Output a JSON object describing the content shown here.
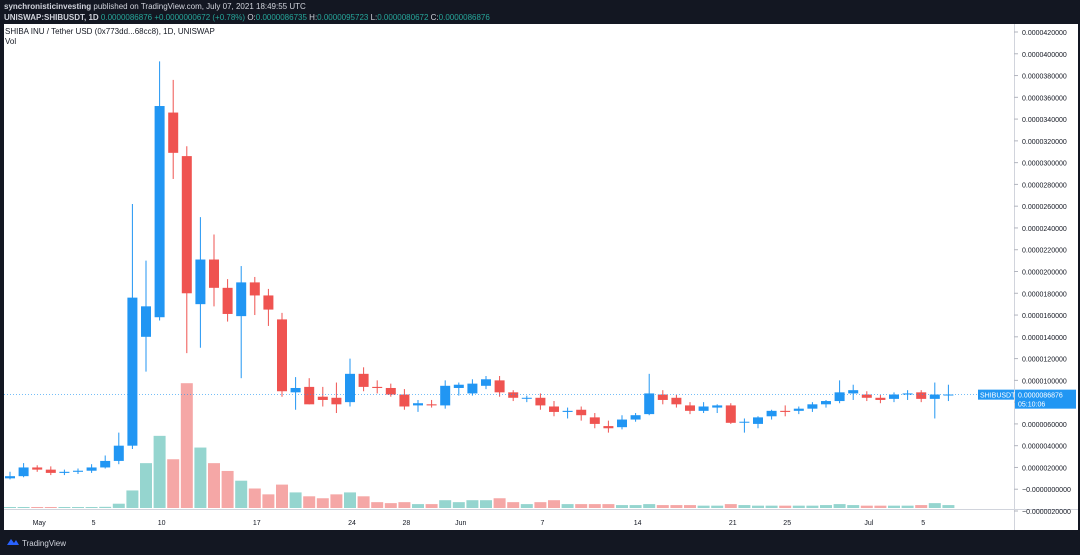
{
  "header": {
    "author": "synchronisticinvesting",
    "published_text": " published on TradingView.com, July 07, 2021 18:49:55 UTC",
    "symbol": "UNISWAP:SHIBUSDT, 1D",
    "last": "0.0000086876",
    "change": "+0.0000000672 (+0.78%)",
    "o_label": "O:",
    "o": "0.0000086735",
    "h_label": "H:",
    "h": "0.0000095723",
    "l_label": "L:",
    "l": "0.0000080672",
    "c_label": "C:",
    "c": "0.0000086876"
  },
  "legend": {
    "title": "SHIBA INU / Tether USD (0x773dd...68cc8), 1D, UNISWAP",
    "vol": "Vol"
  },
  "footer": {
    "brand": "TradingView"
  },
  "colors": {
    "up": "#2196f3",
    "down": "#ef5350",
    "vol_up": "#95d5cf",
    "vol_down": "#f5a7a6",
    "price_tag": "#2196f3"
  },
  "chart_data": {
    "type": "candlestick",
    "symbol": "SHIBUSDT",
    "interval": "1D",
    "ylim": [
      -2e-06,
      4.2e-05
    ],
    "y_ticks": [
      "0.0000420000",
      "0.0000400000",
      "0.0000380000",
      "0.0000360000",
      "0.0000340000",
      "0.0000320000",
      "0.0000300000",
      "0.0000280000",
      "0.0000260000",
      "0.0000240000",
      "0.0000220000",
      "0.0000200000",
      "0.0000180000",
      "0.0000160000",
      "0.0000140000",
      "0.0000120000",
      "0.0000100000",
      "0.0000080000",
      "0.0000060000",
      "0.0000040000",
      "0.0000020000",
      "−0.0000000000",
      "−0.0000020000"
    ],
    "x_ticks": [
      {
        "label": "May",
        "index": 2
      },
      {
        "label": "5",
        "index": 6
      },
      {
        "label": "10",
        "index": 11
      },
      {
        "label": "17",
        "index": 18
      },
      {
        "label": "24",
        "index": 25
      },
      {
        "label": "28",
        "index": 29
      },
      {
        "label": "Jun",
        "index": 33
      },
      {
        "label": "7",
        "index": 39
      },
      {
        "label": "14",
        "index": 46
      },
      {
        "label": "21",
        "index": 53
      },
      {
        "label": "25",
        "index": 57
      },
      {
        "label": "Jul",
        "index": 63
      },
      {
        "label": "5",
        "index": 67
      }
    ],
    "last_price": {
      "value": 8.6876e-06,
      "label": "SHIBUSDT",
      "price": "0.0000086876",
      "countdown": "05:10:06"
    },
    "candles": [
      {
        "o": 1e-06,
        "h": 1.6e-06,
        "l": 9e-07,
        "c": 1.2e-06,
        "v": 0.2
      },
      {
        "o": 1.2e-06,
        "h": 2.4e-06,
        "l": 1.1e-06,
        "c": 2e-06,
        "v": 0.3
      },
      {
        "o": 2e-06,
        "h": 2.2e-06,
        "l": 1.6e-06,
        "c": 1.8e-06,
        "v": 0.2
      },
      {
        "o": 1.8e-06,
        "h": 2.1e-06,
        "l": 1.3e-06,
        "c": 1.5e-06,
        "v": 0.2
      },
      {
        "o": 1.5e-06,
        "h": 1.8e-06,
        "l": 1.3e-06,
        "c": 1.6e-06,
        "v": 0.2
      },
      {
        "o": 1.6e-06,
        "h": 1.9e-06,
        "l": 1.4e-06,
        "c": 1.7e-06,
        "v": 0.2
      },
      {
        "o": 1.7e-06,
        "h": 2.3e-06,
        "l": 1.5e-06,
        "c": 2e-06,
        "v": 0.3
      },
      {
        "o": 2e-06,
        "h": 3.1e-06,
        "l": 1.9e-06,
        "c": 2.6e-06,
        "v": 0.6
      },
      {
        "o": 2.6e-06,
        "h": 5.2e-06,
        "l": 2.3e-06,
        "c": 4e-06,
        "v": 2.2
      },
      {
        "o": 4e-06,
        "h": 2.62e-05,
        "l": 3.7e-06,
        "c": 1.76e-05,
        "v": 9.0
      },
      {
        "o": 1.4e-05,
        "h": 2.1e-05,
        "l": 1.08e-05,
        "c": 1.68e-05,
        "v": 23.0
      },
      {
        "o": 1.58e-05,
        "h": 3.93e-05,
        "l": 1.55e-05,
        "c": 3.52e-05,
        "v": 37.0
      },
      {
        "o": 3.46e-05,
        "h": 3.76e-05,
        "l": 2.85e-05,
        "c": 3.09e-05,
        "v": 25.0
      },
      {
        "o": 3.06e-05,
        "h": 3.15e-05,
        "l": 1.25e-05,
        "c": 1.8e-05,
        "v": 64.0
      },
      {
        "o": 1.7e-05,
        "h": 2.5e-05,
        "l": 1.3e-05,
        "c": 2.11e-05,
        "v": 31.0
      },
      {
        "o": 2.11e-05,
        "h": 2.34e-05,
        "l": 1.68e-05,
        "c": 1.85e-05,
        "v": 23.0
      },
      {
        "o": 1.85e-05,
        "h": 1.93e-05,
        "l": 1.54e-05,
        "c": 1.61e-05,
        "v": 19.0
      },
      {
        "o": 1.59e-05,
        "h": 2.05e-05,
        "l": 1.02e-05,
        "c": 1.9e-05,
        "v": 14.0
      },
      {
        "o": 1.9e-05,
        "h": 1.95e-05,
        "l": 1.6e-05,
        "c": 1.78e-05,
        "v": 10.0
      },
      {
        "o": 1.78e-05,
        "h": 1.84e-05,
        "l": 1.5e-05,
        "c": 1.65e-05,
        "v": 7.0
      },
      {
        "o": 1.56e-05,
        "h": 1.62e-05,
        "l": 8.5e-06,
        "c": 9e-06,
        "v": 12.0
      },
      {
        "o": 8.9e-06,
        "h": 1.03e-05,
        "l": 7.3e-06,
        "c": 9.3e-06,
        "v": 8.0
      },
      {
        "o": 9.4e-06,
        "h": 1.02e-05,
        "l": 7.8e-06,
        "c": 7.8e-06,
        "v": 6.0
      },
      {
        "o": 8.5e-06,
        "h": 9.4e-06,
        "l": 7.6e-06,
        "c": 8.2e-06,
        "v": 5.0
      },
      {
        "o": 8.4e-06,
        "h": 9.8e-06,
        "l": 7e-06,
        "c": 7.8e-06,
        "v": 7.0
      },
      {
        "o": 8e-06,
        "h": 1.2e-05,
        "l": 7.6e-06,
        "c": 1.06e-05,
        "v": 8.0
      },
      {
        "o": 1.06e-05,
        "h": 1.12e-05,
        "l": 9e-06,
        "c": 9.4e-06,
        "v": 6.0
      },
      {
        "o": 9.4e-06,
        "h": 1e-05,
        "l": 8.8e-06,
        "c": 9.3e-06,
        "v": 3.0
      },
      {
        "o": 9.3e-06,
        "h": 9.7e-06,
        "l": 8.5e-06,
        "c": 8.7e-06,
        "v": 2.5
      },
      {
        "o": 8.7e-06,
        "h": 9.2e-06,
        "l": 7.3e-06,
        "c": 7.6e-06,
        "v": 3.0
      },
      {
        "o": 7.7e-06,
        "h": 8.2e-06,
        "l": 7.1e-06,
        "c": 7.9e-06,
        "v": 2.0
      },
      {
        "o": 7.8e-06,
        "h": 8.2e-06,
        "l": 7.5e-06,
        "c": 7.7e-06,
        "v": 2.0
      },
      {
        "o": 7.7e-06,
        "h": 1e-05,
        "l": 7.4e-06,
        "c": 9.5e-06,
        "v": 4.0
      },
      {
        "o": 9.3e-06,
        "h": 9.8e-06,
        "l": 8.6e-06,
        "c": 9.6e-06,
        "v": 3.0
      },
      {
        "o": 8.8e-06,
        "h": 1.01e-05,
        "l": 8.6e-06,
        "c": 9.7e-06,
        "v": 4.0
      },
      {
        "o": 9.5e-06,
        "h": 1.04e-05,
        "l": 9.2e-06,
        "c": 1.01e-05,
        "v": 4.0
      },
      {
        "o": 1e-05,
        "h": 1.04e-05,
        "l": 8.5e-06,
        "c": 8.9e-06,
        "v": 5.0
      },
      {
        "o": 8.9e-06,
        "h": 9.1e-06,
        "l": 8.1e-06,
        "c": 8.4e-06,
        "v": 3.0
      },
      {
        "o": 8.4e-06,
        "h": 8.6e-06,
        "l": 8e-06,
        "c": 8.4e-06,
        "v": 2.0
      },
      {
        "o": 8.4e-06,
        "h": 8.8e-06,
        "l": 7.3e-06,
        "c": 7.7e-06,
        "v": 3.0
      },
      {
        "o": 7.6e-06,
        "h": 8.1e-06,
        "l": 6.7e-06,
        "c": 7.1e-06,
        "v": 4.0
      },
      {
        "o": 7.1e-06,
        "h": 7.5e-06,
        "l": 6.5e-06,
        "c": 7.2e-06,
        "v": 2.0
      },
      {
        "o": 7.3e-06,
        "h": 7.6e-06,
        "l": 6.3e-06,
        "c": 6.8e-06,
        "v": 2.0
      },
      {
        "o": 6.6e-06,
        "h": 7e-06,
        "l": 5.6e-06,
        "c": 6e-06,
        "v": 2.0
      },
      {
        "o": 5.8e-06,
        "h": 6.3e-06,
        "l": 5.2e-06,
        "c": 5.6e-06,
        "v": 2.0
      },
      {
        "o": 5.7e-06,
        "h": 6.8e-06,
        "l": 5.5e-06,
        "c": 6.4e-06,
        "v": 1.5
      },
      {
        "o": 6.4e-06,
        "h": 7e-06,
        "l": 6.2e-06,
        "c": 6.8e-06,
        "v": 1.5
      },
      {
        "o": 6.9e-06,
        "h": 1.06e-05,
        "l": 6.8e-06,
        "c": 8.8e-06,
        "v": 2.0
      },
      {
        "o": 8.7e-06,
        "h": 9.1e-06,
        "l": 7.8e-06,
        "c": 8.2e-06,
        "v": 1.5
      },
      {
        "o": 8.4e-06,
        "h": 8.7e-06,
        "l": 7.5e-06,
        "c": 7.8e-06,
        "v": 1.5
      },
      {
        "o": 7.7e-06,
        "h": 8e-06,
        "l": 6.9e-06,
        "c": 7.2e-06,
        "v": 1.5
      },
      {
        "o": 7.2e-06,
        "h": 8e-06,
        "l": 7e-06,
        "c": 7.6e-06,
        "v": 1.2
      },
      {
        "o": 7.5e-06,
        "h": 7.8e-06,
        "l": 7e-06,
        "c": 7.7e-06,
        "v": 1.2
      },
      {
        "o": 7.7e-06,
        "h": 7.9e-06,
        "l": 6e-06,
        "c": 6.1e-06,
        "v": 2.0
      },
      {
        "o": 6.2e-06,
        "h": 6.5e-06,
        "l": 5.2e-06,
        "c": 6.2e-06,
        "v": 1.5
      },
      {
        "o": 6e-06,
        "h": 6.7e-06,
        "l": 5.6e-06,
        "c": 6.6e-06,
        "v": 1.2
      },
      {
        "o": 6.7e-06,
        "h": 7.3e-06,
        "l": 6.4e-06,
        "c": 7.2e-06,
        "v": 1.2
      },
      {
        "o": 7.2e-06,
        "h": 7.7e-06,
        "l": 6.7e-06,
        "c": 7.1e-06,
        "v": 1.2
      },
      {
        "o": 7.2e-06,
        "h": 7.6e-06,
        "l": 6.9e-06,
        "c": 7.4e-06,
        "v": 1.2
      },
      {
        "o": 7.4e-06,
        "h": 8e-06,
        "l": 7.1e-06,
        "c": 7.8e-06,
        "v": 1.2
      },
      {
        "o": 7.8e-06,
        "h": 8.2e-06,
        "l": 7.5e-06,
        "c": 8.1e-06,
        "v": 1.5
      },
      {
        "o": 8.1e-06,
        "h": 1e-05,
        "l": 7.9e-06,
        "c": 8.9e-06,
        "v": 2.0
      },
      {
        "o": 8.8e-06,
        "h": 9.6e-06,
        "l": 8.2e-06,
        "c": 9.1e-06,
        "v": 1.5
      },
      {
        "o": 8.7e-06,
        "h": 9e-06,
        "l": 8.1e-06,
        "c": 8.4e-06,
        "v": 1.2
      },
      {
        "o": 8.4e-06,
        "h": 8.7e-06,
        "l": 7.9e-06,
        "c": 8.2e-06,
        "v": 1.2
      },
      {
        "o": 8.3e-06,
        "h": 8.9e-06,
        "l": 8e-06,
        "c": 8.7e-06,
        "v": 1.2
      },
      {
        "o": 8.7e-06,
        "h": 9.1e-06,
        "l": 8.2e-06,
        "c": 8.8e-06,
        "v": 1.2
      },
      {
        "o": 8.9e-06,
        "h": 9.1e-06,
        "l": 8e-06,
        "c": 8.3e-06,
        "v": 1.5
      },
      {
        "o": 8.3e-06,
        "h": 9.8e-06,
        "l": 6.5e-06,
        "c": 8.7e-06,
        "v": 2.5
      },
      {
        "o": 8.7e-06,
        "h": 9.6e-06,
        "l": 8.1e-06,
        "c": 8.7e-06,
        "v": 1.5
      }
    ]
  }
}
